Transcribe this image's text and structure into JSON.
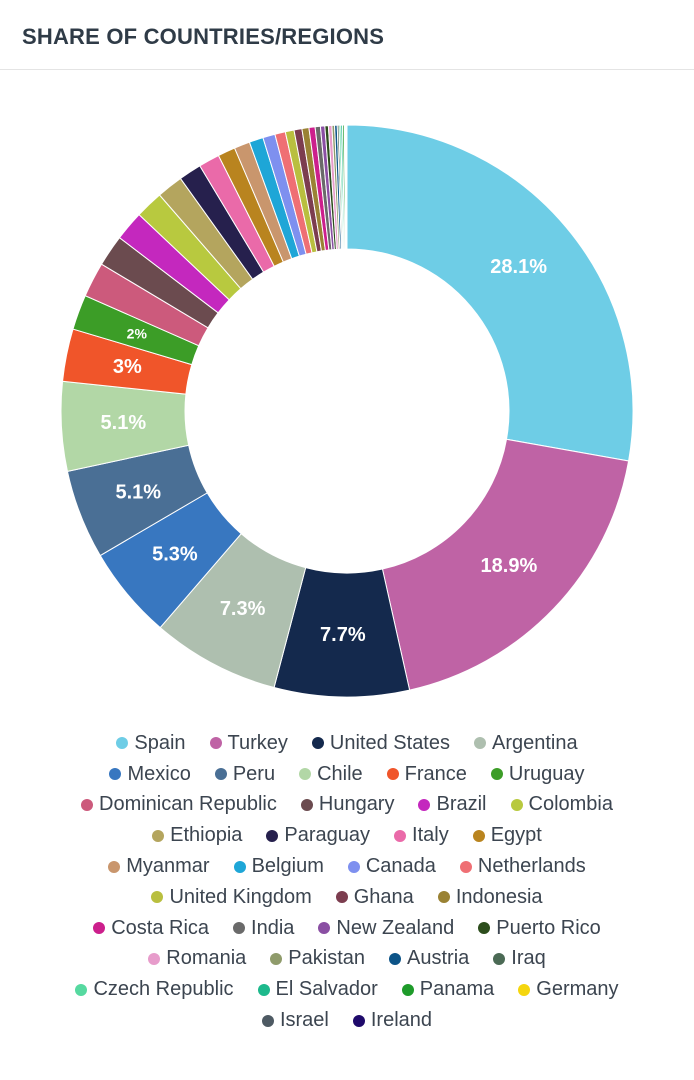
{
  "header": {
    "title": "SHARE OF COUNTRIES/REGIONS"
  },
  "chart_data": {
    "type": "pie",
    "variant": "donut",
    "title": "SHARE OF COUNTRIES/REGIONS",
    "legend_position": "bottom",
    "unit": "%",
    "slices": [
      {
        "label": "Spain",
        "value": 28.1,
        "display": "28.1%",
        "color": "#6ecde6"
      },
      {
        "label": "Turkey",
        "value": 18.9,
        "display": "18.9%",
        "color": "#bf63a5"
      },
      {
        "label": "United States",
        "value": 7.7,
        "display": "7.7%",
        "color": "#14294d"
      },
      {
        "label": "Argentina",
        "value": 7.3,
        "display": "7.3%",
        "color": "#aebfaf"
      },
      {
        "label": "Mexico",
        "value": 5.3,
        "display": "5.3%",
        "color": "#3877c0"
      },
      {
        "label": "Peru",
        "value": 5.1,
        "display": "5.1%",
        "color": "#4a6f95"
      },
      {
        "label": "Chile",
        "value": 5.1,
        "display": "5.1%",
        "color": "#b2d7a6"
      },
      {
        "label": "France",
        "value": 3,
        "display": "3%",
        "color": "#f0552a"
      },
      {
        "label": "Uruguay",
        "value": 2,
        "display": "2%",
        "color": "#3c9d27"
      },
      {
        "label": "Dominican Republic",
        "value": 2,
        "display": "",
        "color": "#cc5a7c"
      },
      {
        "label": "Hungary",
        "value": 1.8,
        "display": "",
        "color": "#6b4b4f"
      },
      {
        "label": "Brazil",
        "value": 1.7,
        "display": "",
        "color": "#c428be"
      },
      {
        "label": "Colombia",
        "value": 1.6,
        "display": "",
        "color": "#b8c93f"
      },
      {
        "label": "Ethiopia",
        "value": 1.5,
        "display": "",
        "color": "#b4a55e"
      },
      {
        "label": "Paraguay",
        "value": 1.3,
        "display": "",
        "color": "#26204d"
      },
      {
        "label": "Italy",
        "value": 1.2,
        "display": "",
        "color": "#ea6aa9"
      },
      {
        "label": "Egypt",
        "value": 1.0,
        "display": "",
        "color": "#b9841f"
      },
      {
        "label": "Myanmar",
        "value": 0.9,
        "display": "",
        "color": "#c9966d"
      },
      {
        "label": "Belgium",
        "value": 0.8,
        "display": "",
        "color": "#1ea6d7"
      },
      {
        "label": "Canada",
        "value": 0.7,
        "display": "",
        "color": "#7e90ef"
      },
      {
        "label": "Netherlands",
        "value": 0.6,
        "display": "",
        "color": "#ef6f74"
      },
      {
        "label": "United Kingdom",
        "value": 0.5,
        "display": "",
        "color": "#b9bf3f"
      },
      {
        "label": "Ghana",
        "value": 0.45,
        "display": "",
        "color": "#7c3d4f"
      },
      {
        "label": "Indonesia",
        "value": 0.4,
        "display": "",
        "color": "#9a8234"
      },
      {
        "label": "Costa Rica",
        "value": 0.35,
        "display": "",
        "color": "#cc1f8c"
      },
      {
        "label": "India",
        "value": 0.3,
        "display": "",
        "color": "#6a6a6a"
      },
      {
        "label": "New Zealand",
        "value": 0.25,
        "display": "",
        "color": "#8a4fa3"
      },
      {
        "label": "Puerto Rico",
        "value": 0.2,
        "display": "",
        "color": "#2c4d1c"
      },
      {
        "label": "Romania",
        "value": 0.2,
        "display": "",
        "color": "#e79ccb"
      },
      {
        "label": "Pakistan",
        "value": 0.15,
        "display": "",
        "color": "#8f9b6b"
      },
      {
        "label": "Austria",
        "value": 0.15,
        "display": "",
        "color": "#0d5488"
      },
      {
        "label": "Iraq",
        "value": 0.1,
        "display": "",
        "color": "#4b6a55"
      },
      {
        "label": "Czech Republic",
        "value": 0.1,
        "display": "",
        "color": "#56d9a0"
      },
      {
        "label": "El Salvador",
        "value": 0.1,
        "display": "",
        "color": "#1db98c"
      },
      {
        "label": "Panama",
        "value": 0.1,
        "display": "",
        "color": "#1e9b2a"
      },
      {
        "label": "Germany",
        "value": 0.05,
        "display": "",
        "color": "#f5d60e"
      },
      {
        "label": "Israel",
        "value": 0.05,
        "display": "",
        "color": "#4e5a63"
      },
      {
        "label": "Ireland",
        "value": 0.05,
        "display": "",
        "color": "#1f0a6b"
      }
    ]
  }
}
